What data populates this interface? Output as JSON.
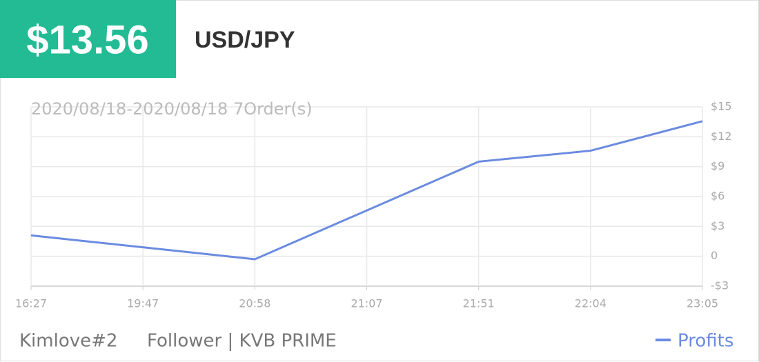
{
  "header": {
    "amount": "$13.56",
    "pair": "USD/JPY"
  },
  "chart_data": {
    "type": "line",
    "subtitle": "2020/08/18-2020/08/18 7Order(s)",
    "categories": [
      "16:27",
      "19:47",
      "20:58",
      "21:07",
      "21:51",
      "22:04",
      "23:05"
    ],
    "series": [
      {
        "name": "Profits",
        "color": "#6b8be0",
        "values": [
          2.1,
          0.9,
          -0.3,
          4.6,
          9.5,
          10.6,
          13.56
        ]
      }
    ],
    "ylim": [
      -3,
      15
    ],
    "yticks": [
      {
        "value": -3,
        "label": "-$3"
      },
      0,
      {
        "value": 3,
        "label": "$3"
      },
      {
        "value": 6,
        "label": "$6"
      },
      {
        "value": 9,
        "label": "$9"
      },
      {
        "value": 12,
        "label": "$12"
      },
      {
        "value": 15,
        "label": "$15"
      }
    ],
    "grid": true
  },
  "footer": {
    "account": "Kimlove#2",
    "role": "Follower | KVB PRIME"
  }
}
